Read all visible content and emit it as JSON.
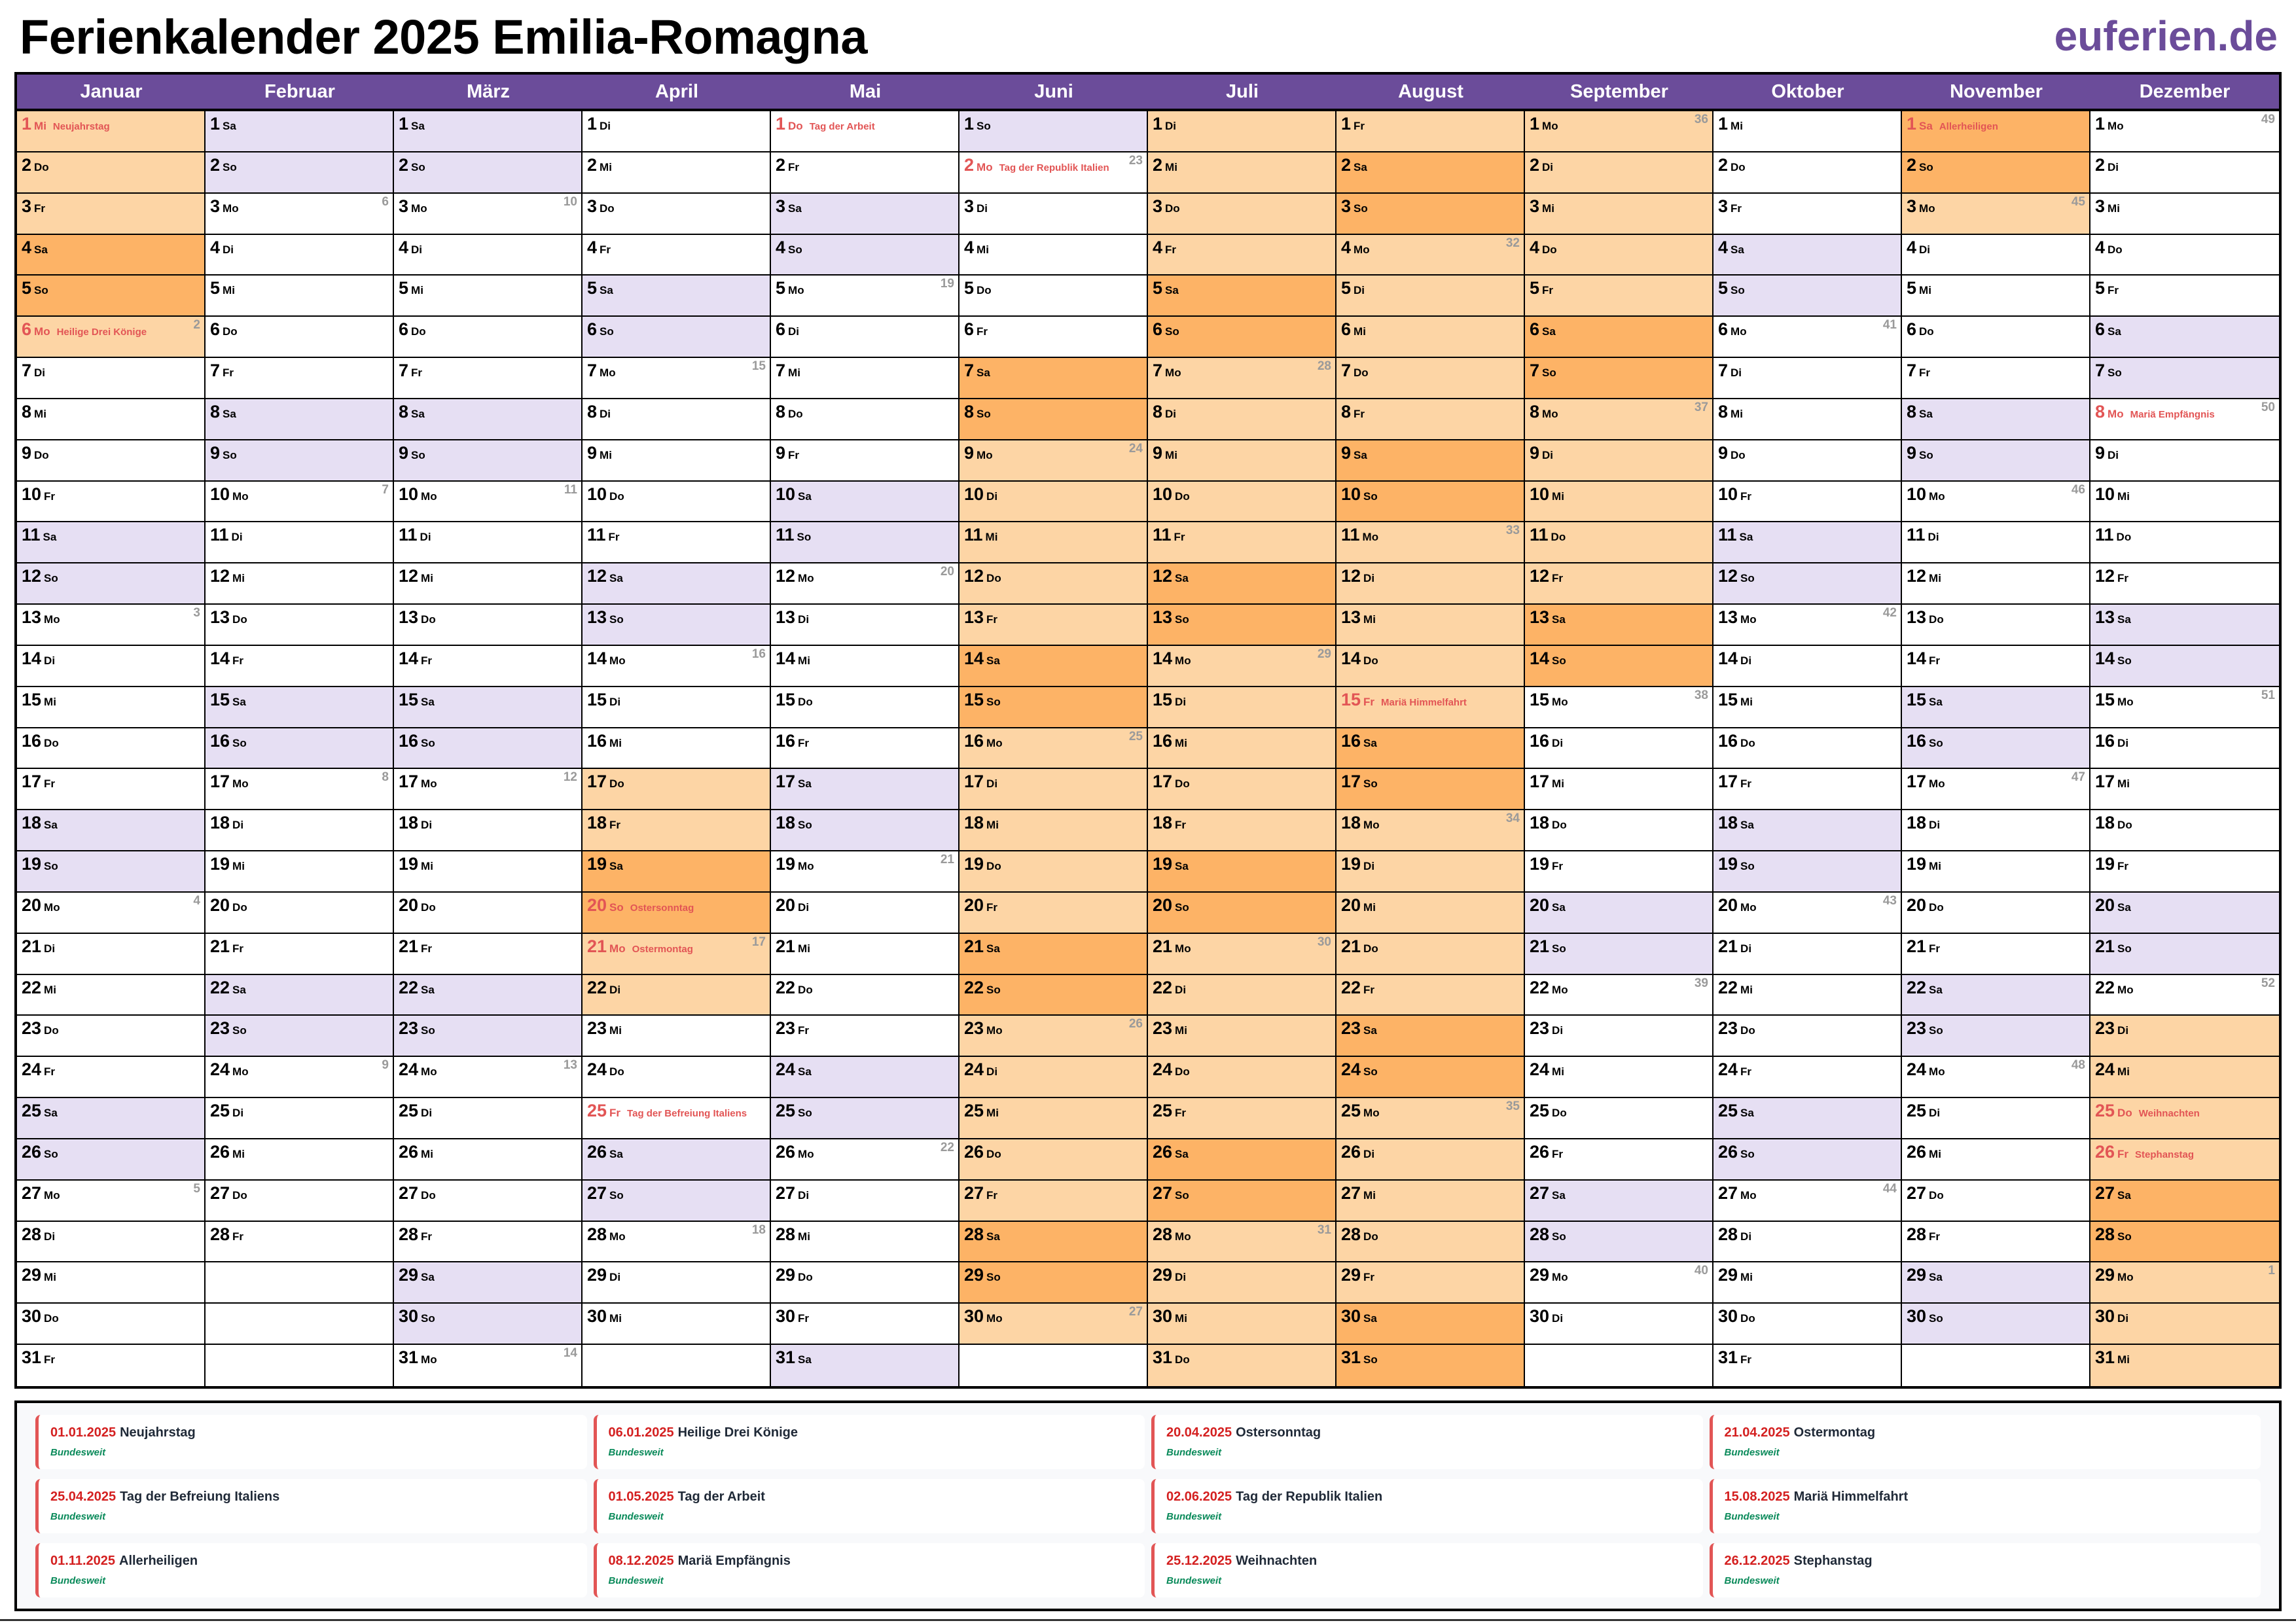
{
  "header": {
    "title": "Ferienkalender 2025 Emilia-Romagna",
    "brand": "euferien.de"
  },
  "year": 2025,
  "months": [
    "Januar",
    "Februar",
    "März",
    "April",
    "Mai",
    "Juni",
    "Juli",
    "August",
    "September",
    "Oktober",
    "November",
    "Dezember"
  ],
  "weekdays": [
    "So",
    "Mo",
    "Di",
    "Mi",
    "Do",
    "Fr",
    "Sa"
  ],
  "vacations": [
    {
      "from": "2025-01-01",
      "to": "2025-01-06"
    },
    {
      "from": "2025-04-17",
      "to": "2025-04-22"
    },
    {
      "from": "2025-06-07",
      "to": "2025-09-14"
    },
    {
      "from": "2025-11-01",
      "to": "2025-11-03"
    },
    {
      "from": "2025-12-23",
      "to": "2025-12-31"
    }
  ],
  "holidays": [
    {
      "date": "2025-01-01",
      "display_date": "01.01.2025",
      "name": "Neujahrstag",
      "region": "Bundesweit"
    },
    {
      "date": "2025-01-06",
      "display_date": "06.01.2025",
      "name": "Heilige Drei Könige",
      "region": "Bundesweit"
    },
    {
      "date": "2025-04-20",
      "display_date": "20.04.2025",
      "name": "Ostersonntag",
      "region": "Bundesweit"
    },
    {
      "date": "2025-04-21",
      "display_date": "21.04.2025",
      "name": "Ostermontag",
      "region": "Bundesweit"
    },
    {
      "date": "2025-04-25",
      "display_date": "25.04.2025",
      "name": "Tag der Befreiung Italiens",
      "region": "Bundesweit"
    },
    {
      "date": "2025-05-01",
      "display_date": "01.05.2025",
      "name": "Tag der Arbeit",
      "region": "Bundesweit"
    },
    {
      "date": "2025-06-02",
      "display_date": "02.06.2025",
      "name": "Tag der Republik Italien",
      "region": "Bundesweit"
    },
    {
      "date": "2025-08-15",
      "display_date": "15.08.2025",
      "name": "Mariä Himmelfahrt",
      "region": "Bundesweit"
    },
    {
      "date": "2025-11-01",
      "display_date": "01.11.2025",
      "name": "Allerheiligen",
      "region": "Bundesweit"
    },
    {
      "date": "2025-12-08",
      "display_date": "08.12.2025",
      "name": "Mariä Empfängnis",
      "region": "Bundesweit"
    },
    {
      "date": "2025-12-25",
      "display_date": "25.12.2025",
      "name": "Weihnachten",
      "region": "Bundesweit"
    },
    {
      "date": "2025-12-26",
      "display_date": "26.12.2025",
      "name": "Stephanstag",
      "region": "Bundesweit"
    }
  ],
  "colors": {
    "header": "#6b4c9a",
    "weekend": "#e6dff3",
    "vacation": "#fdd5a5",
    "vacation_weekend": "#fdb366",
    "holiday_text": "#e25555"
  }
}
